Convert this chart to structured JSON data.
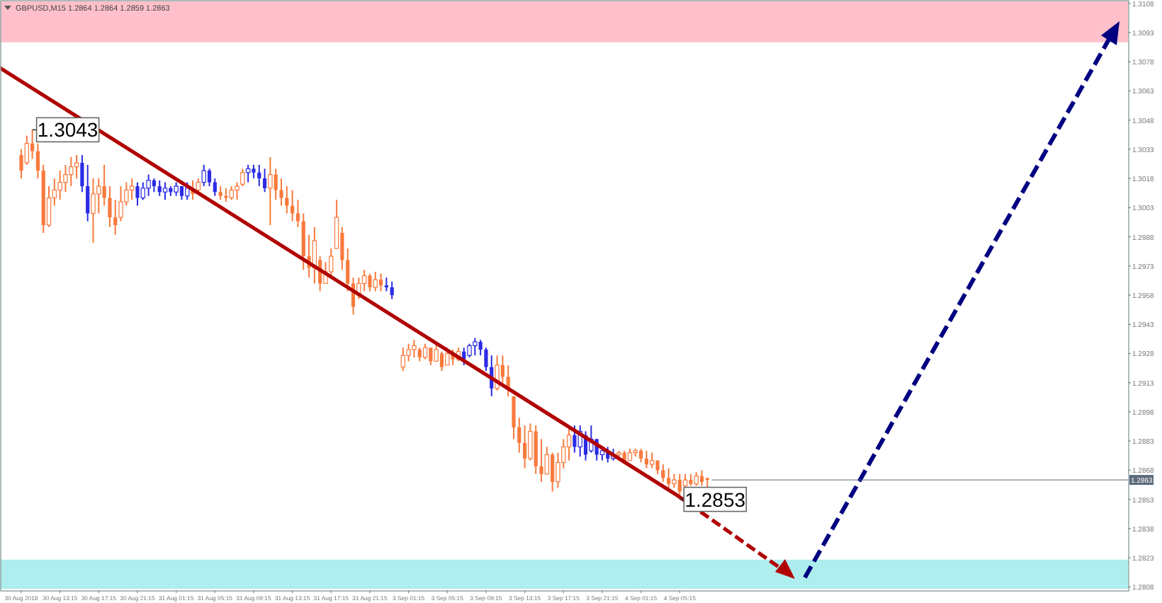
{
  "chart_data": {
    "type": "candlestick",
    "title": "GBPUSD,M15  1.2864 1.2864 1.2859 1.2863",
    "categories": [
      "30 Aug 2018",
      null,
      null,
      null,
      null,
      null,
      null,
      "30 Aug 13:15",
      null,
      null,
      null,
      null,
      null,
      null,
      "30 Aug 17:15",
      null,
      null,
      null,
      null,
      null,
      null,
      "30 Aug 21:15",
      null,
      null,
      null,
      null,
      null,
      null,
      "31 Aug 01:15",
      null,
      null,
      null,
      null,
      null,
      null,
      "31 Aug 05:15",
      null,
      null,
      null,
      null,
      null,
      null,
      "31 Aug 09:15",
      null,
      null,
      null,
      null,
      null,
      null,
      "31 Aug 13:15",
      null,
      null,
      null,
      null,
      null,
      null,
      "31 Aug 17:15",
      null,
      null,
      null,
      null,
      null,
      null,
      "31 Aug 21:15",
      null,
      null,
      null,
      null,
      null,
      null,
      "3 Sep 01:15",
      null,
      null,
      null,
      null,
      null,
      null,
      "3 Sep 05:15",
      null,
      null,
      null,
      null,
      null,
      null,
      "3 Sep 09:15",
      null,
      null,
      null,
      null,
      null,
      null,
      "3 Sep 13:15",
      null,
      null,
      null,
      null,
      null,
      null,
      "3 Sep 17:15",
      null,
      null,
      null,
      null,
      null,
      null,
      "3 Sep 21:15",
      null,
      null,
      null,
      null,
      null,
      null,
      "4 Sep 01:15",
      null,
      null,
      null,
      null,
      null,
      null,
      "4 Sep 05:15",
      null,
      null,
      null,
      null,
      null,
      null,
      null,
      null,
      null,
      null,
      null,
      null,
      null,
      null,
      null,
      null,
      null,
      null,
      null,
      null,
      null,
      null,
      null,
      null,
      null,
      null,
      null,
      null,
      null,
      null,
      null,
      null,
      null,
      null,
      null,
      null,
      null,
      null,
      null,
      null,
      null,
      null,
      null,
      null,
      null,
      null,
      null,
      null,
      null,
      null,
      null,
      null,
      null,
      null,
      null,
      null,
      null,
      null,
      null,
      null,
      null,
      null,
      null,
      null,
      null,
      null,
      null,
      null,
      null,
      null,
      null,
      null,
      null,
      null,
      null,
      null,
      null,
      null,
      null,
      null
    ],
    "ohlc": [
      [
        1.303,
        1.3033,
        1.3018,
        1.3022
      ],
      [
        1.3026,
        1.304,
        1.3025,
        1.3036
      ],
      [
        1.3036,
        1.3043,
        1.3028,
        1.3032
      ],
      [
        1.3032,
        1.3036,
        1.3018,
        1.3022
      ],
      [
        1.3022,
        1.3025,
        1.299,
        1.2994
      ],
      [
        1.2994,
        1.3014,
        1.2993,
        1.3008
      ],
      [
        1.3008,
        1.3018,
        1.3004,
        1.3012
      ],
      [
        1.3012,
        1.3022,
        1.3007,
        1.3016
      ],
      [
        1.3016,
        1.3025,
        1.3011,
        1.302
      ],
      [
        1.302,
        1.3029,
        1.3014,
        1.3024
      ],
      [
        1.3024,
        1.303,
        1.3018,
        1.3026
      ],
      [
        1.3026,
        1.303,
        1.3011,
        1.3014
      ],
      [
        1.3014,
        1.3025,
        1.2996,
        1.3
      ],
      [
        1.3,
        1.3018,
        1.2985,
        1.301
      ],
      [
        1.301,
        1.3018,
        1.3,
        1.3014
      ],
      [
        1.3014,
        1.3025,
        1.3004,
        1.3008
      ],
      [
        1.3008,
        1.3014,
        1.2993,
        1.2998
      ],
      [
        1.2998,
        1.3007,
        1.2989,
        1.2994
      ],
      [
        1.2998,
        1.3014,
        1.2996,
        1.3006
      ],
      [
        1.3006,
        1.3016,
        1.3004,
        1.3012
      ],
      [
        1.3012,
        1.3018,
        1.3007,
        1.3014
      ],
      [
        1.3014,
        1.3016,
        1.3004,
        1.3008
      ],
      [
        1.3008,
        1.3016,
        1.3007,
        1.3013
      ],
      [
        1.3013,
        1.302,
        1.3009,
        1.3017
      ],
      [
        1.3017,
        1.3018,
        1.3011,
        1.3014
      ],
      [
        1.3014,
        1.3017,
        1.3009,
        1.3011
      ],
      [
        1.3011,
        1.3016,
        1.3007,
        1.3013
      ],
      [
        1.3013,
        1.3014,
        1.3009,
        1.3011
      ],
      [
        1.3011,
        1.3016,
        1.3009,
        1.3014
      ],
      [
        1.3014,
        1.3014,
        1.3007,
        1.3009
      ],
      [
        1.3009,
        1.3016,
        1.3007,
        1.3013
      ],
      [
        1.3013,
        1.3017,
        1.3007,
        1.301
      ],
      [
        1.3012,
        1.3018,
        1.3011,
        1.3016
      ],
      [
        1.3016,
        1.3025,
        1.3014,
        1.3022
      ],
      [
        1.3022,
        1.3023,
        1.3014,
        1.3016
      ],
      [
        1.3016,
        1.3018,
        1.3009,
        1.3011
      ],
      [
        1.3011,
        1.3014,
        1.3007,
        1.3009
      ],
      [
        1.3009,
        1.3013,
        1.3006,
        1.3008
      ],
      [
        1.3008,
        1.3014,
        1.3007,
        1.3012
      ],
      [
        1.3012,
        1.3016,
        1.3007,
        1.3014
      ],
      [
        1.3015,
        1.3023,
        1.3014,
        1.3021
      ],
      [
        1.3021,
        1.3025,
        1.3016,
        1.3023
      ],
      [
        1.3023,
        1.3025,
        1.3018,
        1.3021
      ],
      [
        1.3021,
        1.3025,
        1.3014,
        1.3018
      ],
      [
        1.3018,
        1.3023,
        1.3011,
        1.3013
      ],
      [
        1.3013,
        1.3029,
        1.2994,
        1.302
      ],
      [
        1.302,
        1.3023,
        1.3007,
        1.3012
      ],
      [
        1.3012,
        1.3018,
        1.3004,
        1.3008
      ],
      [
        1.3008,
        1.3014,
        1.3,
        1.3004
      ],
      [
        1.3004,
        1.3012,
        1.2996,
        1.3
      ],
      [
        1.3,
        1.3007,
        1.2993,
        1.2996
      ],
      [
        1.2996,
        1.3,
        1.2971,
        1.2978
      ],
      [
        1.2978,
        1.2989,
        1.2967,
        1.2972
      ],
      [
        1.2972,
        1.2993,
        1.2964,
        1.2986
      ],
      [
        1.2976,
        1.2978,
        1.296,
        1.2964
      ],
      [
        1.2964,
        1.2975,
        1.2964,
        1.297
      ],
      [
        1.297,
        1.2982,
        1.2967,
        1.2978
      ],
      [
        1.2982,
        1.3007,
        1.2982,
        1.2998
      ],
      [
        1.299,
        1.2993,
        1.2971,
        1.2976
      ],
      [
        1.2976,
        1.2982,
        1.296,
        1.2964
      ],
      [
        1.2964,
        1.2967,
        1.2948,
        1.2952
      ],
      [
        1.2958,
        1.2967,
        1.2956,
        1.2964
      ],
      [
        1.2964,
        1.2971,
        1.296,
        1.2968
      ],
      [
        1.2968,
        1.2969,
        1.296,
        1.2962
      ],
      [
        1.2962,
        1.297,
        1.296,
        1.2966
      ],
      [
        1.2966,
        1.2969,
        1.296,
        1.2963
      ],
      [
        1.2963,
        1.2967,
        1.296,
        1.2962
      ],
      [
        1.2962,
        1.2965,
        1.2956,
        1.2958
      ],
      null,
      [
        1.2921,
        1.2931,
        1.2919,
        1.2927
      ],
      [
        1.2927,
        1.2933,
        1.2924,
        1.293
      ],
      [
        1.293,
        1.2935,
        1.2926,
        1.2932
      ],
      [
        1.293,
        1.2931,
        1.2924,
        1.2926
      ],
      [
        1.2926,
        1.2933,
        1.2925,
        1.2931
      ],
      [
        1.2931,
        1.2931,
        1.2922,
        1.2924
      ],
      [
        1.2924,
        1.2933,
        1.2924,
        1.293
      ],
      [
        1.2928,
        1.2929,
        1.2919,
        1.2921
      ],
      [
        1.2922,
        1.2931,
        1.2922,
        1.2928
      ],
      [
        1.2928,
        1.293,
        1.2922,
        1.2925
      ],
      [
        1.2925,
        1.2931,
        1.2924,
        1.2929
      ],
      [
        1.2929,
        1.2931,
        1.2922,
        1.2925
      ],
      [
        1.2927,
        1.2933,
        1.2926,
        1.2932
      ],
      [
        1.2932,
        1.2936,
        1.2927,
        1.2934
      ],
      [
        1.2934,
        1.2935,
        1.2927,
        1.293
      ],
      [
        1.293,
        1.2931,
        1.2919,
        1.2921
      ],
      [
        1.2921,
        1.2927,
        1.2906,
        1.291
      ],
      [
        1.291,
        1.2927,
        1.2909,
        1.2922
      ],
      [
        1.2922,
        1.2927,
        1.2913,
        1.2916
      ],
      [
        1.2916,
        1.2922,
        1.2906,
        1.291
      ],
      [
        1.2906,
        1.2906,
        1.2884,
        1.289
      ],
      [
        1.289,
        1.2895,
        1.2877,
        1.2882
      ],
      [
        1.2882,
        1.2891,
        1.2869,
        1.2874
      ],
      [
        1.2874,
        1.2892,
        1.2873,
        1.2888
      ],
      [
        1.2888,
        1.2891,
        1.2866,
        1.287
      ],
      [
        1.287,
        1.2884,
        1.2862,
        1.2866
      ],
      [
        1.2866,
        1.288,
        1.2866,
        1.2876
      ],
      [
        1.2876,
        1.2877,
        1.2857,
        1.2862
      ],
      [
        1.2862,
        1.2877,
        1.2859,
        1.2872
      ],
      [
        1.2872,
        1.2884,
        1.2869,
        1.288
      ],
      [
        1.288,
        1.2891,
        1.2873,
        1.2886
      ],
      [
        1.2886,
        1.2891,
        1.2877,
        1.288
      ],
      [
        1.288,
        1.2891,
        1.2875,
        1.2888
      ],
      [
        1.2886,
        1.2888,
        1.2873,
        1.2876
      ],
      [
        1.2878,
        1.2891,
        1.2877,
        1.2884
      ],
      [
        1.2884,
        1.2884,
        1.2873,
        1.2876
      ],
      [
        1.2876,
        1.288,
        1.2873,
        1.2878
      ],
      [
        1.2878,
        1.288,
        1.2872,
        1.2874
      ],
      [
        1.2874,
        1.2879,
        1.2873,
        1.2876
      ],
      [
        1.2876,
        1.2878,
        1.2873,
        1.2877
      ],
      [
        1.2877,
        1.2878,
        1.2871,
        1.2873
      ],
      [
        1.2873,
        1.2879,
        1.2873,
        1.2877
      ],
      [
        1.2877,
        1.2879,
        1.2875,
        1.2878
      ],
      [
        1.2878,
        1.2879,
        1.2872,
        1.2874
      ],
      [
        1.2874,
        1.2878,
        1.2869,
        1.2871
      ],
      [
        1.2871,
        1.2877,
        1.2869,
        1.2873
      ],
      [
        1.2873,
        1.2873,
        1.2866,
        1.2868
      ],
      [
        1.2868,
        1.2871,
        1.2862,
        1.2864
      ],
      [
        1.2864,
        1.2869,
        1.2859,
        1.2861
      ],
      [
        1.2861,
        1.2866,
        1.2859,
        1.2863
      ],
      [
        1.2863,
        1.2866,
        1.2853,
        1.2857
      ],
      [
        1.286,
        1.2866,
        1.2859,
        1.2863
      ],
      [
        1.2863,
        1.2866,
        1.286,
        1.2861
      ],
      [
        1.2861,
        1.2867,
        1.286,
        1.2865
      ],
      [
        1.2865,
        1.2868,
        1.286,
        1.2862
      ],
      [
        1.2864,
        1.2864,
        1.2859,
        1.2863
      ],
      null,
      null,
      null,
      null,
      null,
      null,
      null,
      null,
      null,
      null,
      null,
      null,
      null,
      null,
      null,
      null,
      null,
      null,
      null,
      null,
      null,
      null,
      null,
      null,
      null,
      null,
      null,
      null,
      null,
      null,
      null,
      null,
      null,
      null,
      null,
      null,
      null,
      null,
      null,
      null,
      null,
      null,
      null,
      null,
      null,
      null,
      null,
      null,
      null,
      null,
      null,
      null,
      null,
      null,
      null,
      null,
      null,
      null,
      null,
      null,
      null,
      null,
      null,
      null,
      null,
      null,
      null,
      null,
      null,
      null,
      null,
      null,
      null,
      null,
      null
    ],
    "colors": [
      "#f97a3d",
      "#f97a3d",
      "#f97a3d",
      "#f97a3d",
      "#f97a3d",
      "#f97a3d",
      "#f97a3d",
      "#f97a3d",
      "#f97a3d",
      "#f97a3d",
      "#f97a3d",
      "#2b2be6",
      "#2b2be6",
      "#f97a3d",
      "#f97a3d",
      "#f97a3d",
      "#f97a3d",
      "#f97a3d",
      "#f97a3d",
      "#f97a3d",
      "#f97a3d",
      "#2b2be6",
      "#2b2be6",
      "#2b2be6",
      "#2b2be6",
      "#2b2be6",
      "#2b2be6",
      "#2b2be6",
      "#2b2be6",
      "#2b2be6",
      "#2b2be6",
      "#f97a3d",
      "#f97a3d",
      "#2b2be6",
      "#2b2be6",
      "#2b2be6",
      "#f97a3d",
      "#f97a3d",
      "#f97a3d",
      "#f97a3d",
      "#f97a3d",
      "#2b2be6",
      "#2b2be6",
      "#2b2be6",
      "#2b2be6",
      "#f97a3d",
      "#f97a3d",
      "#f97a3d",
      "#f97a3d",
      "#f97a3d",
      "#f97a3d",
      "#f97a3d",
      "#f97a3d",
      "#f97a3d",
      "#f97a3d",
      "#f97a3d",
      "#f97a3d",
      "#f97a3d",
      "#f97a3d",
      "#f97a3d",
      "#f97a3d",
      "#f97a3d",
      "#f97a3d",
      "#f97a3d",
      "#f97a3d",
      "#f97a3d",
      "#2b2be6",
      "#2b2be6",
      null,
      "#f97a3d",
      "#f97a3d",
      "#f97a3d",
      "#f97a3d",
      "#f97a3d",
      "#f97a3d",
      "#f97a3d",
      "#f97a3d",
      "#f97a3d",
      "#f97a3d",
      "#f97a3d",
      "#2b2be6",
      "#2b2be6",
      "#2b2be6",
      "#2b2be6",
      "#2b2be6",
      "#2b2be6",
      "#f97a3d",
      "#f97a3d",
      "#f97a3d",
      "#f97a3d",
      "#f97a3d",
      "#f97a3d",
      "#f97a3d",
      "#f97a3d",
      "#f97a3d",
      "#f97a3d",
      "#f97a3d",
      "#f97a3d",
      "#f97a3d",
      "#f97a3d",
      "#2b2be6",
      "#2b2be6",
      "#2b2be6",
      "#2b2be6",
      "#2b2be6",
      "#2b2be6",
      "#2b2be6",
      "#2b2be6",
      "#f97a3d",
      "#f97a3d",
      "#f97a3d",
      "#f97a3d",
      "#f97a3d",
      "#f97a3d",
      "#f97a3d",
      "#f97a3d",
      "#f97a3d",
      "#f97a3d",
      "#f97a3d",
      "#f97a3d",
      "#f97a3d",
      "#f97a3d",
      "#f97a3d",
      "#f97a3d",
      "#f97a3d",
      null,
      null,
      null,
      null,
      null,
      null,
      null,
      null,
      null,
      null,
      null,
      null,
      null,
      null,
      null,
      null,
      null,
      null,
      null,
      null,
      null,
      null,
      null,
      null,
      null,
      null,
      null,
      null,
      null,
      null,
      null,
      null,
      null,
      null,
      null,
      null,
      null,
      null,
      null,
      null,
      null,
      null,
      null,
      null,
      null,
      null,
      null,
      null,
      null,
      null,
      null,
      null,
      null,
      null,
      null,
      null,
      null,
      null,
      null,
      null,
      null,
      null,
      null,
      null,
      null,
      null,
      null,
      null,
      null,
      null,
      null,
      null,
      null,
      null,
      null
    ],
    "ylim": [
      1.2807,
      1.3109
    ],
    "yticks": [
      1.3108,
      1.3093,
      1.3078,
      1.3063,
      1.3048,
      1.3033,
      1.3018,
      1.3003,
      1.2988,
      1.2973,
      1.2958,
      1.2943,
      1.2928,
      1.2913,
      1.2898,
      1.2883,
      1.2868,
      1.2853,
      1.2838,
      1.2823,
      1.2808
    ],
    "bands": [
      {
        "axis": "y",
        "from": 1.3088,
        "to": 1.3109,
        "color": "#ffc0cb"
      },
      {
        "axis": "y",
        "from": 1.2807,
        "to": 1.2822,
        "color": "#aeeeee"
      }
    ],
    "ref_lines": [
      {
        "axis": "y",
        "value": 1.2863,
        "label": "1.2863",
        "color": "#5a6a7a"
      }
    ],
    "annotations": [
      "1.3043",
      "1.2853"
    ]
  }
}
